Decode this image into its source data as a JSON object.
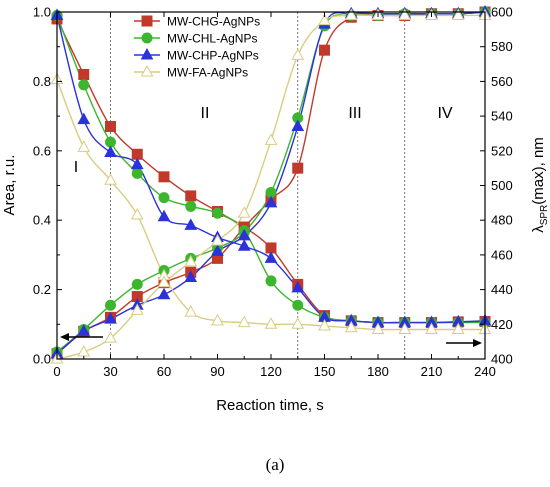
{
  "caption": "(a)",
  "chart_data": {
    "type": "line",
    "xlabel": "Reaction time, s",
    "ylabel_left": "Area, r.u.",
    "ylabel_right_prefix": "λ",
    "ylabel_right_sub": "SPR",
    "ylabel_right_suffix": "(max), nm",
    "xlim": [
      0,
      240
    ],
    "ylim_left": [
      0.0,
      1.0
    ],
    "ylim_right": [
      400,
      600
    ],
    "x_ticks": [
      0,
      30,
      60,
      90,
      120,
      150,
      180,
      210,
      240
    ],
    "y_left_ticks": [
      "0.0",
      "0.2",
      "0.4",
      "0.6",
      "0.8",
      "1.0"
    ],
    "y_right_ticks": [
      400,
      420,
      440,
      460,
      480,
      500,
      520,
      540,
      560,
      580,
      600
    ],
    "region_labels": [
      "I",
      "II",
      "III",
      "IV"
    ],
    "region_dividers_x": [
      30,
      135,
      195
    ],
    "legend_position": "top-center",
    "series": [
      {
        "name": "MW-CHG-AgNPs",
        "color": "#c0392b",
        "marker": "square",
        "area": {
          "x": [
            0,
            15,
            30,
            45,
            60,
            75,
            90,
            105,
            120,
            135,
            150,
            165,
            180,
            195,
            210,
            225,
            240
          ],
          "y": [
            0.98,
            0.82,
            0.67,
            0.59,
            0.525,
            0.47,
            0.425,
            0.38,
            0.32,
            0.215,
            0.125,
            0.11,
            0.105,
            0.105,
            0.105,
            0.107,
            0.108
          ]
        },
        "lambda": {
          "x": [
            0,
            15,
            30,
            45,
            60,
            75,
            90,
            105,
            120,
            135,
            150,
            165,
            180,
            195,
            210,
            225,
            240
          ],
          "y": [
            403,
            416,
            424,
            436,
            444,
            450,
            458,
            476,
            492,
            510,
            578,
            597,
            598,
            598,
            599,
            599,
            600
          ]
        }
      },
      {
        "name": "MW-CHL-AgNPs",
        "color": "#3cb52f",
        "marker": "circle",
        "area": {
          "x": [
            0,
            15,
            30,
            45,
            60,
            75,
            90,
            105,
            120,
            135,
            150,
            165,
            180,
            195,
            210,
            225,
            240
          ],
          "y": [
            0.99,
            0.79,
            0.625,
            0.535,
            0.465,
            0.44,
            0.42,
            0.37,
            0.225,
            0.155,
            0.12,
            0.11,
            0.105,
            0.105,
            0.105,
            0.105,
            0.105
          ]
        },
        "lambda": {
          "x": [
            0,
            15,
            30,
            45,
            60,
            75,
            90,
            105,
            120,
            135,
            150,
            165,
            180,
            195,
            210,
            225,
            240
          ],
          "y": [
            404,
            417,
            431,
            443,
            451,
            458,
            464,
            473,
            496,
            539,
            592,
            598,
            598,
            599,
            599,
            599,
            600
          ]
        }
      },
      {
        "name": "MW-CHP-AgNPs",
        "color": "#2b32d8",
        "marker": "triangle",
        "area": {
          "x": [
            0,
            15,
            30,
            45,
            60,
            75,
            90,
            105,
            120,
            135,
            150,
            165,
            180,
            195,
            210,
            225,
            240
          ],
          "y": [
            0.99,
            0.69,
            0.595,
            0.56,
            0.41,
            0.385,
            0.35,
            0.325,
            0.29,
            0.205,
            0.12,
            0.11,
            0.105,
            0.105,
            0.105,
            0.107,
            0.11
          ]
        },
        "lambda": {
          "x": [
            0,
            15,
            30,
            45,
            60,
            75,
            90,
            105,
            120,
            135,
            150,
            165,
            180,
            195,
            210,
            225,
            240
          ],
          "y": [
            403,
            416,
            423,
            431,
            437,
            447,
            462,
            471,
            490,
            534,
            593,
            599,
            599,
            599,
            599,
            599,
            600
          ]
        }
      },
      {
        "name": "MW-FA-AgNPs",
        "color": "#d9cc82",
        "marker": "triangle-open",
        "area": {
          "x": [
            0,
            15,
            30,
            45,
            60,
            75,
            90,
            105,
            120,
            135,
            150,
            165,
            180,
            195,
            210,
            225,
            240
          ],
          "y": [
            0.805,
            0.61,
            0.515,
            0.415,
            0.24,
            0.135,
            0.11,
            0.105,
            0.1,
            0.1,
            0.095,
            0.09,
            0.085,
            0.085,
            0.085,
            0.085,
            0.085
          ]
        },
        "lambda": {
          "x": [
            0,
            15,
            30,
            45,
            60,
            75,
            90,
            105,
            120,
            135,
            150,
            165,
            180,
            195,
            210,
            225,
            240
          ],
          "y": [
            400,
            404,
            412,
            428,
            444,
            456,
            468,
            484,
            526,
            575,
            595,
            598,
            598,
            598,
            598,
            598,
            598
          ]
        }
      }
    ]
  }
}
